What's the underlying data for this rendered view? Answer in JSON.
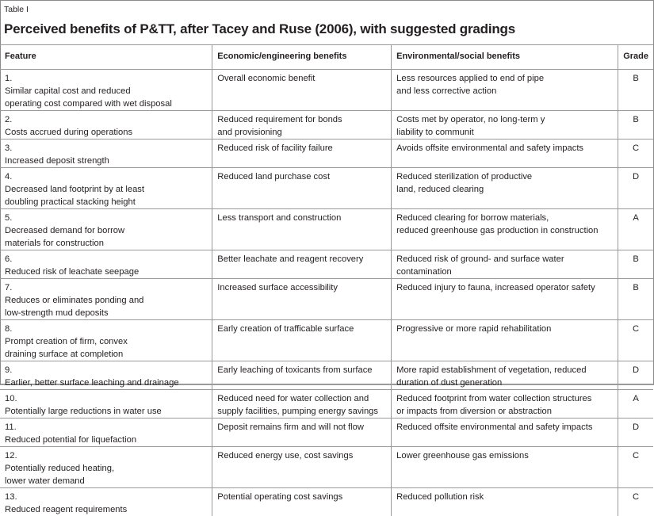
{
  "table_label": "Table I",
  "title": "Perceived benefits of P&TT, after Tacey and Ruse (2006), with suggested gradings",
  "headers": [
    "Feature",
    "Economic/engineering benefits",
    "Environmental/social benefits",
    "Grade"
  ],
  "rows": [
    {
      "num": "1.",
      "feature": "Similar capital cost and reduced\noperating cost compared with wet disposal",
      "economic": "Overall economic benefit",
      "environmental": "Less resources applied to end of pipe\nand less corrective action",
      "grade": "B"
    },
    {
      "num": "2.",
      "feature": "Costs accrued during operations",
      "economic": "Reduced requirement for bonds\nand provisioning",
      "environmental": "Costs met by operator, no long-term y\nliability to communit",
      "grade": "B"
    },
    {
      "num": "3.",
      "feature": "Increased deposit strength",
      "economic": "Reduced risk of facility failure",
      "environmental": "Avoids offsite environmental and safety impacts",
      "grade": "C"
    },
    {
      "num": "4.",
      "feature": "Decreased land footprint by at least\ndoubling practical stacking height",
      "economic": "Reduced land purchase cost",
      "environmental": "Reduced sterilization of productive\nland, reduced clearing",
      "grade": "D"
    },
    {
      "num": "5.",
      "feature": "Decreased demand for borrow\nmaterials for construction",
      "economic": "Less transport and construction",
      "environmental": "Reduced clearing for borrow materials,\nreduced greenhouse gas production in construction",
      "grade": "A"
    },
    {
      "num": "6.",
      "feature": "Reduced risk of leachate seepage",
      "economic": "Better leachate and reagent recovery",
      "environmental": "Reduced risk of ground- and surface water\ncontamination",
      "grade": "B"
    },
    {
      "num": "7.",
      "feature": "Reduces or eliminates ponding and\nlow-strength mud deposits",
      "economic": "Increased surface accessibility",
      "environmental": "Reduced injury to fauna, increased operator safety",
      "grade": "B"
    },
    {
      "num": "8.",
      "feature": "Prompt creation of firm, convex\ndraining surface at completion",
      "economic": "Early creation of trafficable surface",
      "environmental": "Progressive or more rapid rehabilitation",
      "grade": "C"
    },
    {
      "num": "9.",
      "feature": "Earlier, better surface leaching and drainage",
      "economic": "Early leaching of toxicants from surface",
      "environmental": "More rapid establishment of vegetation, reduced\nduration of dust generation",
      "grade": "D"
    },
    {
      "num": "10.",
      "feature": "Potentially large reductions in water use",
      "economic": "Reduced need for water collection and\nsupply facilities, pumping energy savings",
      "environmental": "Reduced footprint from water collection structures\nor impacts from diversion or abstraction",
      "grade": "A"
    },
    {
      "num": "11.",
      "feature": "Reduced potential for liquefaction",
      "economic": "Deposit remains firm and will not flow",
      "environmental": "Reduced offsite environmental and safety impacts",
      "grade": "D"
    },
    {
      "num": "12.",
      "feature": "Potentially reduced heating,\nlower water demand",
      "economic": "Reduced energy use, cost savings",
      "environmental": "Lower greenhouse gas emissions",
      "grade": "C"
    },
    {
      "num": "13.",
      "feature": "Reduced reagent requirements",
      "economic": "Potential operating cost savings",
      "environmental": "Reduced pollution risk",
      "grade": "C"
    }
  ]
}
